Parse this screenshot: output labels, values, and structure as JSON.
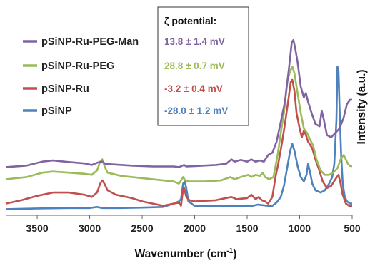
{
  "chart_data": {
    "type": "line",
    "xlabel": "Wavenumber",
    "xlabel_unit": "(cm",
    "xlabel_exp": "-1",
    "xlabel_close": ")",
    "ylabel": "Intensity (a.u.)",
    "xlim": [
      3800,
      500
    ],
    "x_reversed": true,
    "x_ticks": [
      3500,
      3000,
      2500,
      2000,
      1500,
      1000,
      500
    ],
    "y_ticks": false,
    "grid": false,
    "legend_position": "top-left",
    "zeta_box": {
      "title": "ζ potential:",
      "values": [
        "13.8 ± 1.4 mV",
        "28.8 ± 0.7 mV",
        "-3.2 ± 0.4 mV",
        "-28.0 ± 1.2 mV"
      ]
    },
    "series": [
      {
        "name": "pSiNP-Ru-PEG-Man",
        "color": "#8064a2",
        "points": [
          [
            3800,
            2.05
          ],
          [
            3600,
            2.12
          ],
          [
            3450,
            2.3
          ],
          [
            3350,
            2.35
          ],
          [
            3200,
            2.28
          ],
          [
            3050,
            2.22
          ],
          [
            2980,
            2.15
          ],
          [
            2930,
            2.25
          ],
          [
            2880,
            2.3
          ],
          [
            2850,
            2.2
          ],
          [
            2800,
            2.18
          ],
          [
            2600,
            2.12
          ],
          [
            2400,
            2.08
          ],
          [
            2200,
            2.08
          ],
          [
            2150,
            2.05
          ],
          [
            2100,
            2.15
          ],
          [
            2080,
            2.08
          ],
          [
            2000,
            2.1
          ],
          [
            1800,
            2.15
          ],
          [
            1700,
            2.2
          ],
          [
            1650,
            2.4
          ],
          [
            1620,
            2.3
          ],
          [
            1560,
            2.38
          ],
          [
            1500,
            2.3
          ],
          [
            1460,
            2.4
          ],
          [
            1420,
            2.3
          ],
          [
            1380,
            2.35
          ],
          [
            1340,
            2.3
          ],
          [
            1300,
            2.6
          ],
          [
            1260,
            2.7
          ],
          [
            1220,
            3.2
          ],
          [
            1180,
            4.1
          ],
          [
            1140,
            5.0
          ],
          [
            1100,
            6.6
          ],
          [
            1075,
            7.7
          ],
          [
            1060,
            7.8
          ],
          [
            1045,
            7.5
          ],
          [
            1020,
            6.8
          ],
          [
            990,
            5.7
          ],
          [
            960,
            5.2
          ],
          [
            940,
            5.4
          ],
          [
            920,
            5.0
          ],
          [
            880,
            4.4
          ],
          [
            850,
            4.0
          ],
          [
            810,
            3.9
          ],
          [
            790,
            4.6
          ],
          [
            770,
            4.2
          ],
          [
            740,
            3.5
          ],
          [
            700,
            3.4
          ],
          [
            660,
            3.6
          ],
          [
            620,
            3.8
          ],
          [
            580,
            4.3
          ],
          [
            550,
            4.9
          ],
          [
            520,
            5.1
          ],
          [
            500,
            5.1
          ]
        ]
      },
      {
        "name": "pSiNP-Ru-PEG",
        "color": "#9bbb59",
        "points": [
          [
            3800,
            1.5
          ],
          [
            3600,
            1.6
          ],
          [
            3450,
            1.8
          ],
          [
            3350,
            1.85
          ],
          [
            3200,
            1.8
          ],
          [
            3050,
            1.75
          ],
          [
            2980,
            1.7
          ],
          [
            2930,
            1.9
          ],
          [
            2900,
            2.3
          ],
          [
            2880,
            2.4
          ],
          [
            2860,
            2.1
          ],
          [
            2830,
            1.8
          ],
          [
            2700,
            1.65
          ],
          [
            2500,
            1.55
          ],
          [
            2300,
            1.45
          ],
          [
            2200,
            1.4
          ],
          [
            2150,
            1.3
          ],
          [
            2110,
            1.6
          ],
          [
            2090,
            1.45
          ],
          [
            2050,
            1.4
          ],
          [
            1900,
            1.4
          ],
          [
            1750,
            1.45
          ],
          [
            1660,
            1.6
          ],
          [
            1620,
            1.5
          ],
          [
            1560,
            1.6
          ],
          [
            1490,
            1.7
          ],
          [
            1460,
            1.6
          ],
          [
            1420,
            1.7
          ],
          [
            1380,
            1.65
          ],
          [
            1350,
            1.8
          ],
          [
            1330,
            1.6
          ],
          [
            1290,
            1.5
          ],
          [
            1250,
            1.6
          ],
          [
            1210,
            2.6
          ],
          [
            1180,
            3.6
          ],
          [
            1150,
            4.5
          ],
          [
            1120,
            5.9
          ],
          [
            1090,
            6.4
          ],
          [
            1070,
            6.6
          ],
          [
            1050,
            6.3
          ],
          [
            1020,
            5.4
          ],
          [
            990,
            4.5
          ],
          [
            960,
            3.8
          ],
          [
            930,
            3.6
          ],
          [
            900,
            3.3
          ],
          [
            870,
            3.0
          ],
          [
            840,
            2.4
          ],
          [
            800,
            1.9
          ],
          [
            760,
            1.7
          ],
          [
            720,
            1.7
          ],
          [
            680,
            1.8
          ],
          [
            640,
            2.0
          ],
          [
            610,
            2.4
          ],
          [
            580,
            2.6
          ],
          [
            540,
            2.2
          ],
          [
            520,
            2.1
          ],
          [
            500,
            2.1
          ]
        ]
      },
      {
        "name": "pSiNP-Ru",
        "color": "#c0504d",
        "points": [
          [
            3800,
            0.4
          ],
          [
            3650,
            0.55
          ],
          [
            3500,
            0.75
          ],
          [
            3350,
            0.9
          ],
          [
            3200,
            0.9
          ],
          [
            3050,
            0.8
          ],
          [
            2980,
            0.7
          ],
          [
            2930,
            0.9
          ],
          [
            2900,
            1.3
          ],
          [
            2880,
            1.45
          ],
          [
            2860,
            1.3
          ],
          [
            2830,
            1.0
          ],
          [
            2750,
            0.8
          ],
          [
            2600,
            0.65
          ],
          [
            2500,
            0.5
          ],
          [
            2400,
            0.4
          ],
          [
            2300,
            0.3
          ],
          [
            2200,
            0.4
          ],
          [
            2150,
            0.45
          ],
          [
            2130,
            0.3
          ],
          [
            2110,
            1.05
          ],
          [
            2100,
            1.1
          ],
          [
            2080,
            0.7
          ],
          [
            2050,
            0.55
          ],
          [
            2000,
            0.5
          ],
          [
            1800,
            0.55
          ],
          [
            1650,
            0.7
          ],
          [
            1600,
            0.6
          ],
          [
            1500,
            0.65
          ],
          [
            1460,
            0.8
          ],
          [
            1420,
            0.6
          ],
          [
            1390,
            0.7
          ],
          [
            1360,
            0.55
          ],
          [
            1330,
            0.5
          ],
          [
            1300,
            0.4
          ],
          [
            1260,
            0.7
          ],
          [
            1230,
            1.6
          ],
          [
            1200,
            2.3
          ],
          [
            1170,
            3.1
          ],
          [
            1140,
            4.0
          ],
          [
            1110,
            5.0
          ],
          [
            1085,
            5.9
          ],
          [
            1070,
            6.0
          ],
          [
            1050,
            5.5
          ],
          [
            1030,
            4.5
          ],
          [
            1000,
            3.8
          ],
          [
            980,
            3.4
          ],
          [
            960,
            3.7
          ],
          [
            940,
            3.5
          ],
          [
            920,
            3.2
          ],
          [
            880,
            2.9
          ],
          [
            850,
            2.4
          ],
          [
            820,
            2.0
          ],
          [
            780,
            1.4
          ],
          [
            740,
            1.1
          ],
          [
            700,
            1.2
          ],
          [
            660,
            1.5
          ],
          [
            630,
            1.7
          ],
          [
            610,
            1.3
          ],
          [
            590,
            0.8
          ],
          [
            560,
            0.4
          ],
          [
            530,
            0.3
          ],
          [
            500,
            0.3
          ]
        ]
      },
      {
        "name": "pSiNP",
        "color": "#4f81bd",
        "points": [
          [
            3800,
            0.15
          ],
          [
            3500,
            0.18
          ],
          [
            3200,
            0.2
          ],
          [
            3000,
            0.2
          ],
          [
            2930,
            0.25
          ],
          [
            2880,
            0.2
          ],
          [
            2700,
            0.2
          ],
          [
            2500,
            0.22
          ],
          [
            2300,
            0.25
          ],
          [
            2200,
            0.4
          ],
          [
            2150,
            0.5
          ],
          [
            2130,
            0.6
          ],
          [
            2110,
            1.3
          ],
          [
            2095,
            1.4
          ],
          [
            2080,
            1.1
          ],
          [
            2060,
            0.5
          ],
          [
            2000,
            0.3
          ],
          [
            1800,
            0.3
          ],
          [
            1600,
            0.3
          ],
          [
            1450,
            0.3
          ],
          [
            1400,
            0.35
          ],
          [
            1300,
            0.3
          ],
          [
            1260,
            0.3
          ],
          [
            1220,
            0.45
          ],
          [
            1180,
            0.7
          ],
          [
            1150,
            1.2
          ],
          [
            1120,
            2.0
          ],
          [
            1090,
            2.8
          ],
          [
            1070,
            3.1
          ],
          [
            1050,
            2.8
          ],
          [
            1020,
            2.1
          ],
          [
            990,
            1.6
          ],
          [
            960,
            1.4
          ],
          [
            935,
            1.7
          ],
          [
            920,
            2.2
          ],
          [
            900,
            1.8
          ],
          [
            880,
            1.3
          ],
          [
            850,
            1.0
          ],
          [
            800,
            0.9
          ],
          [
            760,
            1.0
          ],
          [
            720,
            1.3
          ],
          [
            690,
            1.6
          ],
          [
            670,
            2.2
          ],
          [
            650,
            4.2
          ],
          [
            640,
            6.6
          ],
          [
            630,
            6.4
          ],
          [
            620,
            4.7
          ],
          [
            605,
            2.6
          ],
          [
            590,
            1.3
          ],
          [
            570,
            0.7
          ],
          [
            550,
            0.5
          ],
          [
            520,
            0.4
          ],
          [
            500,
            0.4
          ]
        ]
      }
    ]
  }
}
